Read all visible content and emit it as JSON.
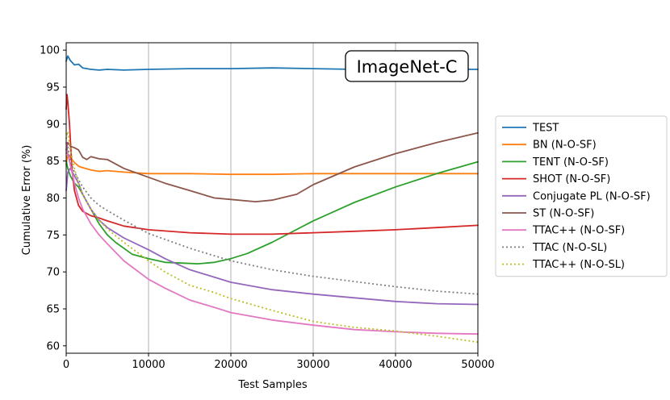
{
  "chart_data": {
    "type": "line",
    "title": "",
    "annotation": "ImageNet-C",
    "xlabel": "Test Samples",
    "ylabel": "Cumulative Error (%)",
    "xlim": [
      0,
      50000
    ],
    "ylim": [
      59,
      101
    ],
    "xticks": [
      0,
      10000,
      20000,
      30000,
      40000,
      50000
    ],
    "yticks": [
      60,
      65,
      70,
      75,
      80,
      85,
      90,
      95,
      100
    ],
    "grid": "vertical",
    "legend_position": "outside-right",
    "series": [
      {
        "name": "TEST",
        "color": "#1f77b4",
        "style": "solid",
        "x": [
          0,
          200,
          500,
          1000,
          1500,
          2000,
          3000,
          4000,
          5000,
          7000,
          10000,
          15000,
          20000,
          25000,
          30000,
          35000,
          40000,
          45000,
          50000
        ],
        "y": [
          98.5,
          99.2,
          98.6,
          98.0,
          98.1,
          97.6,
          97.4,
          97.3,
          97.4,
          97.3,
          97.4,
          97.5,
          97.5,
          97.6,
          97.5,
          97.4,
          97.4,
          97.4,
          97.4
        ]
      },
      {
        "name": "BN (N-O-SF)",
        "color": "#ff7f0e",
        "style": "solid",
        "x": [
          0,
          200,
          500,
          1000,
          1500,
          2000,
          3000,
          4000,
          5000,
          7000,
          10000,
          15000,
          20000,
          25000,
          30000,
          35000,
          40000,
          45000,
          50000
        ],
        "y": [
          84.5,
          86.0,
          85.5,
          84.8,
          84.3,
          84.1,
          83.8,
          83.6,
          83.7,
          83.5,
          83.3,
          83.3,
          83.2,
          83.2,
          83.3,
          83.3,
          83.3,
          83.3,
          83.3
        ]
      },
      {
        "name": "TENT (N-O-SF)",
        "color": "#2ca02c",
        "style": "solid",
        "x": [
          0,
          200,
          500,
          1000,
          1500,
          2000,
          3000,
          4000,
          5000,
          6000,
          7000,
          8000,
          10000,
          12000,
          14000,
          16000,
          18000,
          20000,
          22000,
          25000,
          30000,
          35000,
          40000,
          45000,
          50000
        ],
        "y": [
          85.0,
          84.0,
          83.0,
          82.0,
          81.5,
          80.5,
          78.5,
          76.5,
          75.0,
          74.0,
          73.2,
          72.4,
          71.8,
          71.3,
          71.2,
          71.1,
          71.3,
          71.8,
          72.5,
          74.0,
          76.9,
          79.4,
          81.5,
          83.3,
          84.9
        ]
      },
      {
        "name": "SHOT (N-O-SF)",
        "color": "#d62728",
        "style": "solid",
        "x": [
          0,
          100,
          200,
          400,
          700,
          1000,
          1500,
          2000,
          3000,
          4000,
          5000,
          7000,
          10000,
          15000,
          20000,
          25000,
          30000,
          35000,
          40000,
          45000,
          50000
        ],
        "y": [
          92.0,
          94.0,
          93.0,
          90.0,
          84.0,
          81.0,
          79.0,
          78.2,
          77.6,
          77.3,
          76.9,
          76.2,
          75.7,
          75.3,
          75.1,
          75.1,
          75.3,
          75.5,
          75.7,
          76.0,
          76.3
        ]
      },
      {
        "name": "Conjugate PL (N-O-SF)",
        "color": "#9467bd",
        "style": "solid",
        "x": [
          0,
          200,
          500,
          1000,
          1500,
          2000,
          3000,
          4000,
          5000,
          7000,
          10000,
          12000,
          15000,
          20000,
          25000,
          30000,
          35000,
          40000,
          45000,
          50000
        ],
        "y": [
          81.0,
          83.5,
          84.0,
          83.0,
          82.0,
          80.5,
          78.5,
          77.0,
          76.0,
          74.6,
          73.0,
          71.8,
          70.3,
          68.6,
          67.6,
          67.0,
          66.5,
          66.0,
          65.7,
          65.6
        ]
      },
      {
        "name": "ST (N-O-SF)",
        "color": "#8c564b",
        "style": "solid",
        "x": [
          0,
          200,
          500,
          1000,
          1500,
          2000,
          2500,
          3000,
          4000,
          5000,
          7000,
          10000,
          12000,
          15000,
          18000,
          20000,
          23000,
          25000,
          28000,
          30000,
          35000,
          40000,
          45000,
          50000
        ],
        "y": [
          86.5,
          87.5,
          87.0,
          86.8,
          86.5,
          85.5,
          85.2,
          85.6,
          85.3,
          85.2,
          84.0,
          82.8,
          82.0,
          81.0,
          80.0,
          79.8,
          79.5,
          79.7,
          80.5,
          81.8,
          84.2,
          86.0,
          87.5,
          88.8
        ]
      },
      {
        "name": "TTAC++ (N-O-SF)",
        "color": "#e377c2",
        "style": "solid",
        "x": [
          0,
          200,
          500,
          1000,
          1500,
          2000,
          3000,
          4000,
          5000,
          7000,
          10000,
          12000,
          15000,
          18000,
          20000,
          25000,
          30000,
          35000,
          40000,
          45000,
          50000
        ],
        "y": [
          87.5,
          86.0,
          84.5,
          82.0,
          80.0,
          78.5,
          76.5,
          75.0,
          73.8,
          71.5,
          69.0,
          67.8,
          66.2,
          65.2,
          64.5,
          63.5,
          62.8,
          62.2,
          61.9,
          61.7,
          61.6
        ]
      },
      {
        "name": "TTAC (N-O-SL)",
        "color": "#7f7f7f",
        "style": "dotted",
        "x": [
          0,
          200,
          500,
          1000,
          1500,
          2000,
          3000,
          4000,
          5000,
          7000,
          10000,
          15000,
          20000,
          25000,
          30000,
          35000,
          40000,
          45000,
          50000
        ],
        "y": [
          86.0,
          87.0,
          85.0,
          83.5,
          82.5,
          81.5,
          80.0,
          79.0,
          78.3,
          77.0,
          75.2,
          73.2,
          71.5,
          70.3,
          69.4,
          68.7,
          68.0,
          67.4,
          67.0
        ]
      },
      {
        "name": "TTAC++ (N-O-SL)",
        "color": "#bcbd22",
        "style": "dotted",
        "x": [
          0,
          200,
          500,
          1000,
          1500,
          2000,
          3000,
          4000,
          5000,
          7000,
          10000,
          12000,
          15000,
          18000,
          20000,
          25000,
          30000,
          35000,
          40000,
          45000,
          50000
        ],
        "y": [
          88.0,
          89.0,
          86.5,
          84.0,
          82.0,
          80.5,
          78.5,
          77.0,
          75.8,
          74.0,
          71.5,
          70.0,
          68.2,
          67.2,
          66.4,
          64.8,
          63.3,
          62.5,
          62.0,
          61.3,
          60.5
        ]
      }
    ]
  }
}
